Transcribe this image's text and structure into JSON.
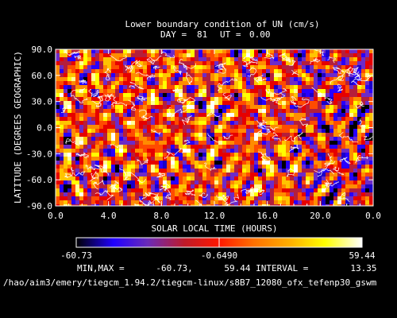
{
  "chart_data": {
    "type": "heatmap",
    "title": "Lower boundary condition of UN (cm/s)",
    "subtitle_day_label": "DAY =",
    "subtitle_day": "81",
    "subtitle_ut_label": "UT =",
    "subtitle_ut": "0.00",
    "xlabel": "SOLAR LOCAL TIME (HOURS)",
    "ylabel": "LATITUDE (DEGREES GEOGRAPHIC)",
    "xlim": [
      0,
      24
    ],
    "ylim": [
      -90,
      90
    ],
    "x_ticks": [
      "0.0",
      "4.0",
      "8.0",
      "12.0",
      "16.0",
      "20.0",
      "0.0"
    ],
    "y_ticks": [
      "-90.0",
      "-60.0",
      "-30.0",
      "0.0",
      "30.0",
      "60.0",
      "90.0"
    ],
    "colorbar": {
      "min_label": "-60.73",
      "mid_label": "-0.6490",
      "max_label": "59.44"
    },
    "min": -60.73,
    "max": 59.44,
    "interval": 13.35,
    "stats_line": "MIN,MAX =      -60.73,      59.44 INTERVAL =        13.35",
    "colormap": [
      "#000000",
      "#1a00c8",
      "#2800ff",
      "#6d2bc8",
      "#b41e3c",
      "#e60000",
      "#ff4b00",
      "#ff8c00",
      "#ffc400",
      "#ffff00",
      "#ffff99",
      "#ffffff"
    ]
  },
  "footer_path": "/hao/aim3/emery/tiegcm_1.94.2/tiegcm-linux/s8B7_12080_ofx_tefenp30_gswm"
}
